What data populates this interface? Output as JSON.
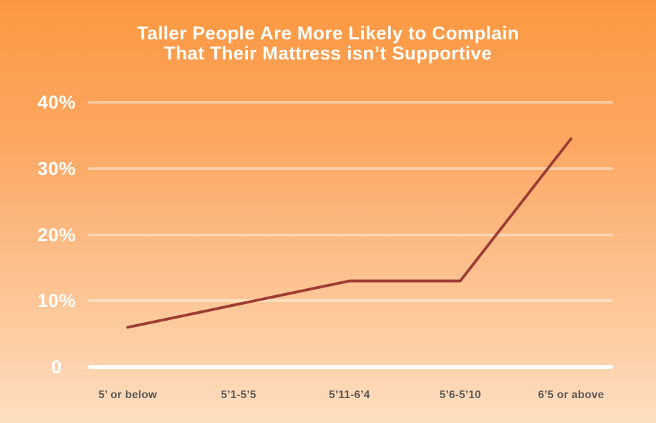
{
  "page": {
    "background_top": "#FD9840",
    "background_bottom": "#FEDEC0",
    "title_color": "#FFFFFF",
    "x_label_color": "#595959",
    "grid_color": "rgba(255,255,255,0.42)",
    "zero_axis_color": "#FFFFFF"
  },
  "chart_data": {
    "type": "line",
    "title": "Taller People Are More Likely to Complain That Their Mattress isn’t Supportive",
    "title_lines": [
      "Taller People Are More Likely to Complain",
      "That Their Mattress isn’t Supportive"
    ],
    "categories": [
      "5’ or below",
      "5’1-5’5",
      "5’11-6’4",
      "5’6-5’10",
      "6’5 or above"
    ],
    "values": [
      6,
      9.5,
      13,
      13,
      34.5
    ],
    "units": "%",
    "y_ticks": [
      {
        "label": "40%",
        "value": 40
      },
      {
        "label": "30%",
        "value": 30
      },
      {
        "label": "20%",
        "value": 20
      },
      {
        "label": "10%",
        "value": 10
      },
      {
        "label": "0",
        "value": 0
      }
    ],
    "ylim": [
      0,
      40
    ],
    "xlabel": "",
    "ylabel": "",
    "grid": true,
    "legend_position": "none",
    "line_color": "#9E3C35"
  }
}
